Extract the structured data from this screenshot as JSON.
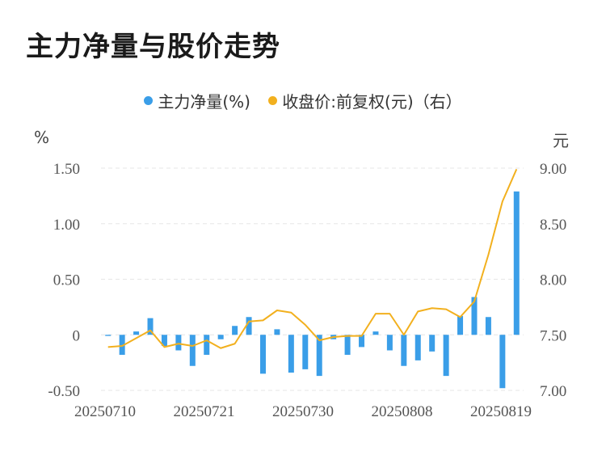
{
  "title": "主力净量与股价走势",
  "legend": {
    "series1": "主力净量(%)",
    "series2": "收盘价:前复权(元)（右）"
  },
  "left_unit": "%",
  "right_unit": "元",
  "colors": {
    "bar": "#3a9ee8",
    "line": "#f2b01e",
    "grid": "#e6e6e6"
  },
  "chart_data": {
    "type": "bar+line",
    "x_tick_labels": [
      "20250710",
      "20250721",
      "20250730",
      "20250808",
      "20250819"
    ],
    "y_left": {
      "ticks": [
        "1.50",
        "1.00",
        "0.50",
        "0",
        "-0.50"
      ],
      "range": [
        -0.5,
        1.5
      ]
    },
    "y_right": {
      "ticks": [
        "9.00",
        "8.50",
        "8.00",
        "7.50",
        "7.00"
      ],
      "range": [
        7.0,
        9.0
      ]
    },
    "series": [
      {
        "name": "主力净量(%)",
        "kind": "bar",
        "axis": "left",
        "values": [
          -0.01,
          -0.18,
          0.03,
          0.15,
          -0.1,
          -0.14,
          -0.28,
          -0.18,
          -0.04,
          0.08,
          0.16,
          -0.35,
          0.05,
          -0.34,
          -0.31,
          -0.37,
          -0.04,
          -0.18,
          -0.11,
          0.03,
          -0.14,
          -0.28,
          -0.23,
          -0.15,
          -0.37,
          0.17,
          0.34,
          0.16,
          -0.48,
          1.29
        ]
      },
      {
        "name": "收盘价:前复权(元)（右）",
        "kind": "line",
        "axis": "right",
        "values": [
          7.39,
          7.4,
          7.47,
          7.54,
          7.39,
          7.42,
          7.4,
          7.45,
          7.38,
          7.42,
          7.62,
          7.63,
          7.72,
          7.7,
          7.59,
          7.45,
          7.48,
          7.49,
          7.49,
          7.69,
          7.69,
          7.5,
          7.71,
          7.74,
          7.73,
          7.66,
          7.8,
          8.22,
          8.7,
          8.99
        ]
      }
    ]
  }
}
